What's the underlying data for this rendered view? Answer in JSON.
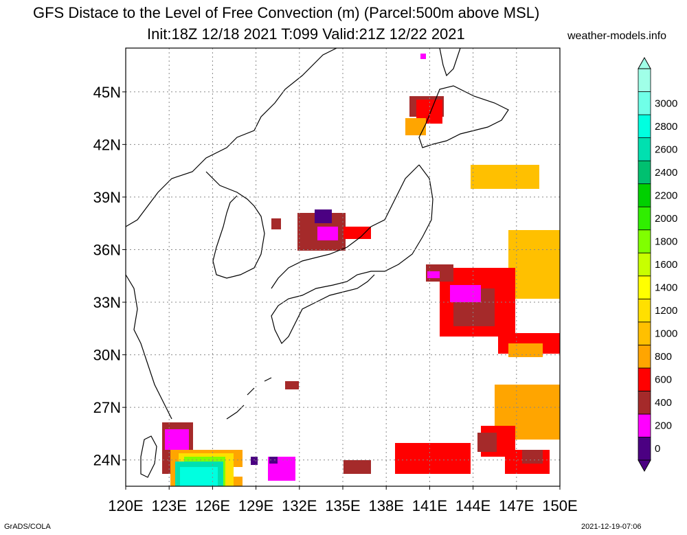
{
  "title": {
    "line1": "GFS Distace to the Level of Free Convection (m) (Parcel:500m above MSL)",
    "line2": "Init:18Z 12/18 2021 T:099 Valid:21Z 12/22 2021"
  },
  "site": "weather-models.info",
  "footer": {
    "left": "GrADS/COLA",
    "right": "2021-12-19-07:06"
  },
  "map": {
    "lon_range": [
      120,
      150
    ],
    "lat_range": [
      22.5,
      47.5
    ],
    "lon_ticks": [
      "120E",
      "123E",
      "126E",
      "129E",
      "132E",
      "135E",
      "138E",
      "141E",
      "144E",
      "147E",
      "150E"
    ],
    "lat_ticks": [
      "24N",
      "27N",
      "30N",
      "33N",
      "36N",
      "39N",
      "42N",
      "45N"
    ],
    "lat_tick_values": [
      24,
      27,
      30,
      33,
      36,
      39,
      42,
      45
    ],
    "lon_tick_values": [
      120,
      123,
      126,
      129,
      132,
      135,
      138,
      141,
      144,
      147,
      150
    ],
    "grid": "dotted"
  },
  "colorbar": {
    "levels": [
      "0",
      "200",
      "400",
      "600",
      "800",
      "1000",
      "1200",
      "1400",
      "1600",
      "1800",
      "2000",
      "2200",
      "2400",
      "2600",
      "2800",
      "3000"
    ],
    "colors": [
      "#4b0082",
      "#ff00ff",
      "#a52a2a",
      "#ff0000",
      "#ffa500",
      "#ffc000",
      "#ffe000",
      "#ffff00",
      "#c8ff00",
      "#80ff00",
      "#30ee00",
      "#00d000",
      "#00c070",
      "#00e0b0",
      "#00ffe0",
      "#70ffe8",
      "#a0ffe8"
    ],
    "under_color": "#4b0082",
    "over_color": "#a0ffe8"
  }
}
